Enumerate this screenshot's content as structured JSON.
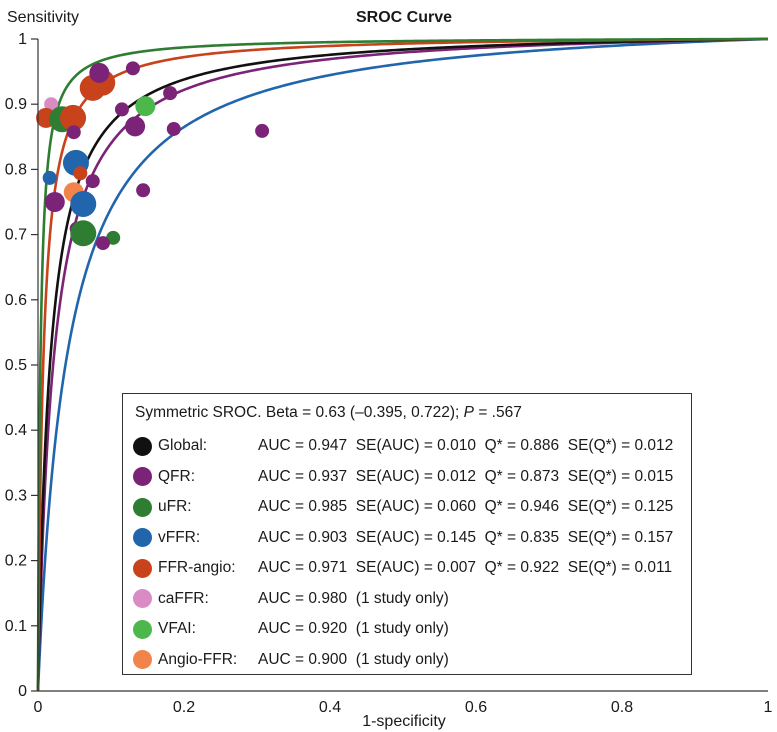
{
  "chart_data": {
    "type": "scatter",
    "title": "SROC Curve",
    "xlabel": "1-specificity",
    "ylabel": "Sensitivity",
    "xlim": [
      0,
      1
    ],
    "ylim": [
      0,
      1
    ],
    "xticks": [
      "0",
      "0.2",
      "0.4",
      "0.6",
      "0.8",
      "1"
    ],
    "xtick_values": [
      0,
      0.2,
      0.4,
      0.6,
      0.8,
      1
    ],
    "yticks": [
      "0",
      "0.1",
      "0.2",
      "0.3",
      "0.4",
      "0.5",
      "0.6",
      "0.7",
      "0.8",
      "0.9",
      "1"
    ],
    "ytick_values": [
      0,
      0.1,
      0.2,
      0.3,
      0.4,
      0.5,
      0.6,
      0.7,
      0.8,
      0.9,
      1
    ],
    "grid": false,
    "legend_placement": "bottom-center",
    "legend_header": {
      "text_before_p": "Symmetric SROC. Beta = 0.63 (–0.395, 0.722); ",
      "p_label": "P",
      "text_after_p": " = .567"
    },
    "curves": [
      {
        "name": "Global",
        "color": "#111111",
        "auc": "0.947",
        "se_auc": "0.010",
        "q": 0.886,
        "q_label": "0.886",
        "se_q": "0.012"
      },
      {
        "name": "QFR",
        "color": "#7b2377",
        "auc": "0.937",
        "se_auc": "0.012",
        "q": 0.873,
        "q_label": "0.873",
        "se_q": "0.015"
      },
      {
        "name": "uFR",
        "color": "#2e7d32",
        "auc": "0.985",
        "se_auc": "0.060",
        "q": 0.946,
        "q_label": "0.946",
        "se_q": "0.125"
      },
      {
        "name": "vFFR",
        "color": "#2166ac",
        "auc": "0.903",
        "se_auc": "0.145",
        "q": 0.835,
        "q_label": "0.835",
        "se_q": "0.157"
      },
      {
        "name": "FFR-angio",
        "color": "#c8421c",
        "auc": "0.971",
        "se_auc": "0.007",
        "q": 0.922,
        "q_label": "0.922",
        "se_q": "0.011"
      }
    ],
    "single_study": [
      {
        "name": "caFFR",
        "color": "#d98cc4",
        "auc": "0.980",
        "note": "(1 study only)"
      },
      {
        "name": "VFAI",
        "color": "#4cb84c",
        "auc": "0.920",
        "note": "(1 study only)"
      },
      {
        "name": "Angio-FFR",
        "color": "#f0844a",
        "auc": "0.900",
        "note": "(1 study only)"
      }
    ],
    "points": [
      {
        "group": "caFFR",
        "x": 0.018,
        "y": 0.9,
        "size": "small"
      },
      {
        "group": "FFR-angio",
        "x": 0.011,
        "y": 0.879,
        "size": "medium"
      },
      {
        "group": "uFR",
        "x": 0.033,
        "y": 0.877,
        "size": "large"
      },
      {
        "group": "FFR-angio",
        "x": 0.048,
        "y": 0.879,
        "size": "large"
      },
      {
        "group": "QFR",
        "x": 0.049,
        "y": 0.857,
        "size": "small"
      },
      {
        "group": "FFR-angio",
        "x": 0.075,
        "y": 0.925,
        "size": "large"
      },
      {
        "group": "FFR-angio",
        "x": 0.088,
        "y": 0.933,
        "size": "large"
      },
      {
        "group": "QFR",
        "x": 0.084,
        "y": 0.948,
        "size": "medium"
      },
      {
        "group": "QFR",
        "x": 0.13,
        "y": 0.955,
        "size": "small"
      },
      {
        "group": "VFAI",
        "x": 0.147,
        "y": 0.897,
        "size": "medium"
      },
      {
        "group": "QFR",
        "x": 0.181,
        "y": 0.917,
        "size": "small"
      },
      {
        "group": "QFR",
        "x": 0.115,
        "y": 0.892,
        "size": "small"
      },
      {
        "group": "QFR",
        "x": 0.133,
        "y": 0.866,
        "size": "medium"
      },
      {
        "group": "QFR",
        "x": 0.186,
        "y": 0.862,
        "size": "small"
      },
      {
        "group": "QFR",
        "x": 0.307,
        "y": 0.859,
        "size": "small"
      },
      {
        "group": "vFFR",
        "x": 0.016,
        "y": 0.787,
        "size": "small"
      },
      {
        "group": "vFFR",
        "x": 0.052,
        "y": 0.81,
        "size": "large"
      },
      {
        "group": "FFR-angio",
        "x": 0.058,
        "y": 0.794,
        "size": "small"
      },
      {
        "group": "QFR",
        "x": 0.075,
        "y": 0.782,
        "size": "small"
      },
      {
        "group": "Angio-FFR",
        "x": 0.049,
        "y": 0.765,
        "size": "medium"
      },
      {
        "group": "QFR",
        "x": 0.023,
        "y": 0.75,
        "size": "medium"
      },
      {
        "group": "vFFR",
        "x": 0.062,
        "y": 0.747,
        "size": "large"
      },
      {
        "group": "QFR",
        "x": 0.144,
        "y": 0.768,
        "size": "small"
      },
      {
        "group": "QFR",
        "x": 0.053,
        "y": 0.709,
        "size": "small"
      },
      {
        "group": "uFR",
        "x": 0.062,
        "y": 0.702,
        "size": "large"
      },
      {
        "group": "uFR",
        "x": 0.103,
        "y": 0.695,
        "size": "small"
      },
      {
        "group": "QFR",
        "x": 0.089,
        "y": 0.687,
        "size": "small"
      }
    ]
  }
}
